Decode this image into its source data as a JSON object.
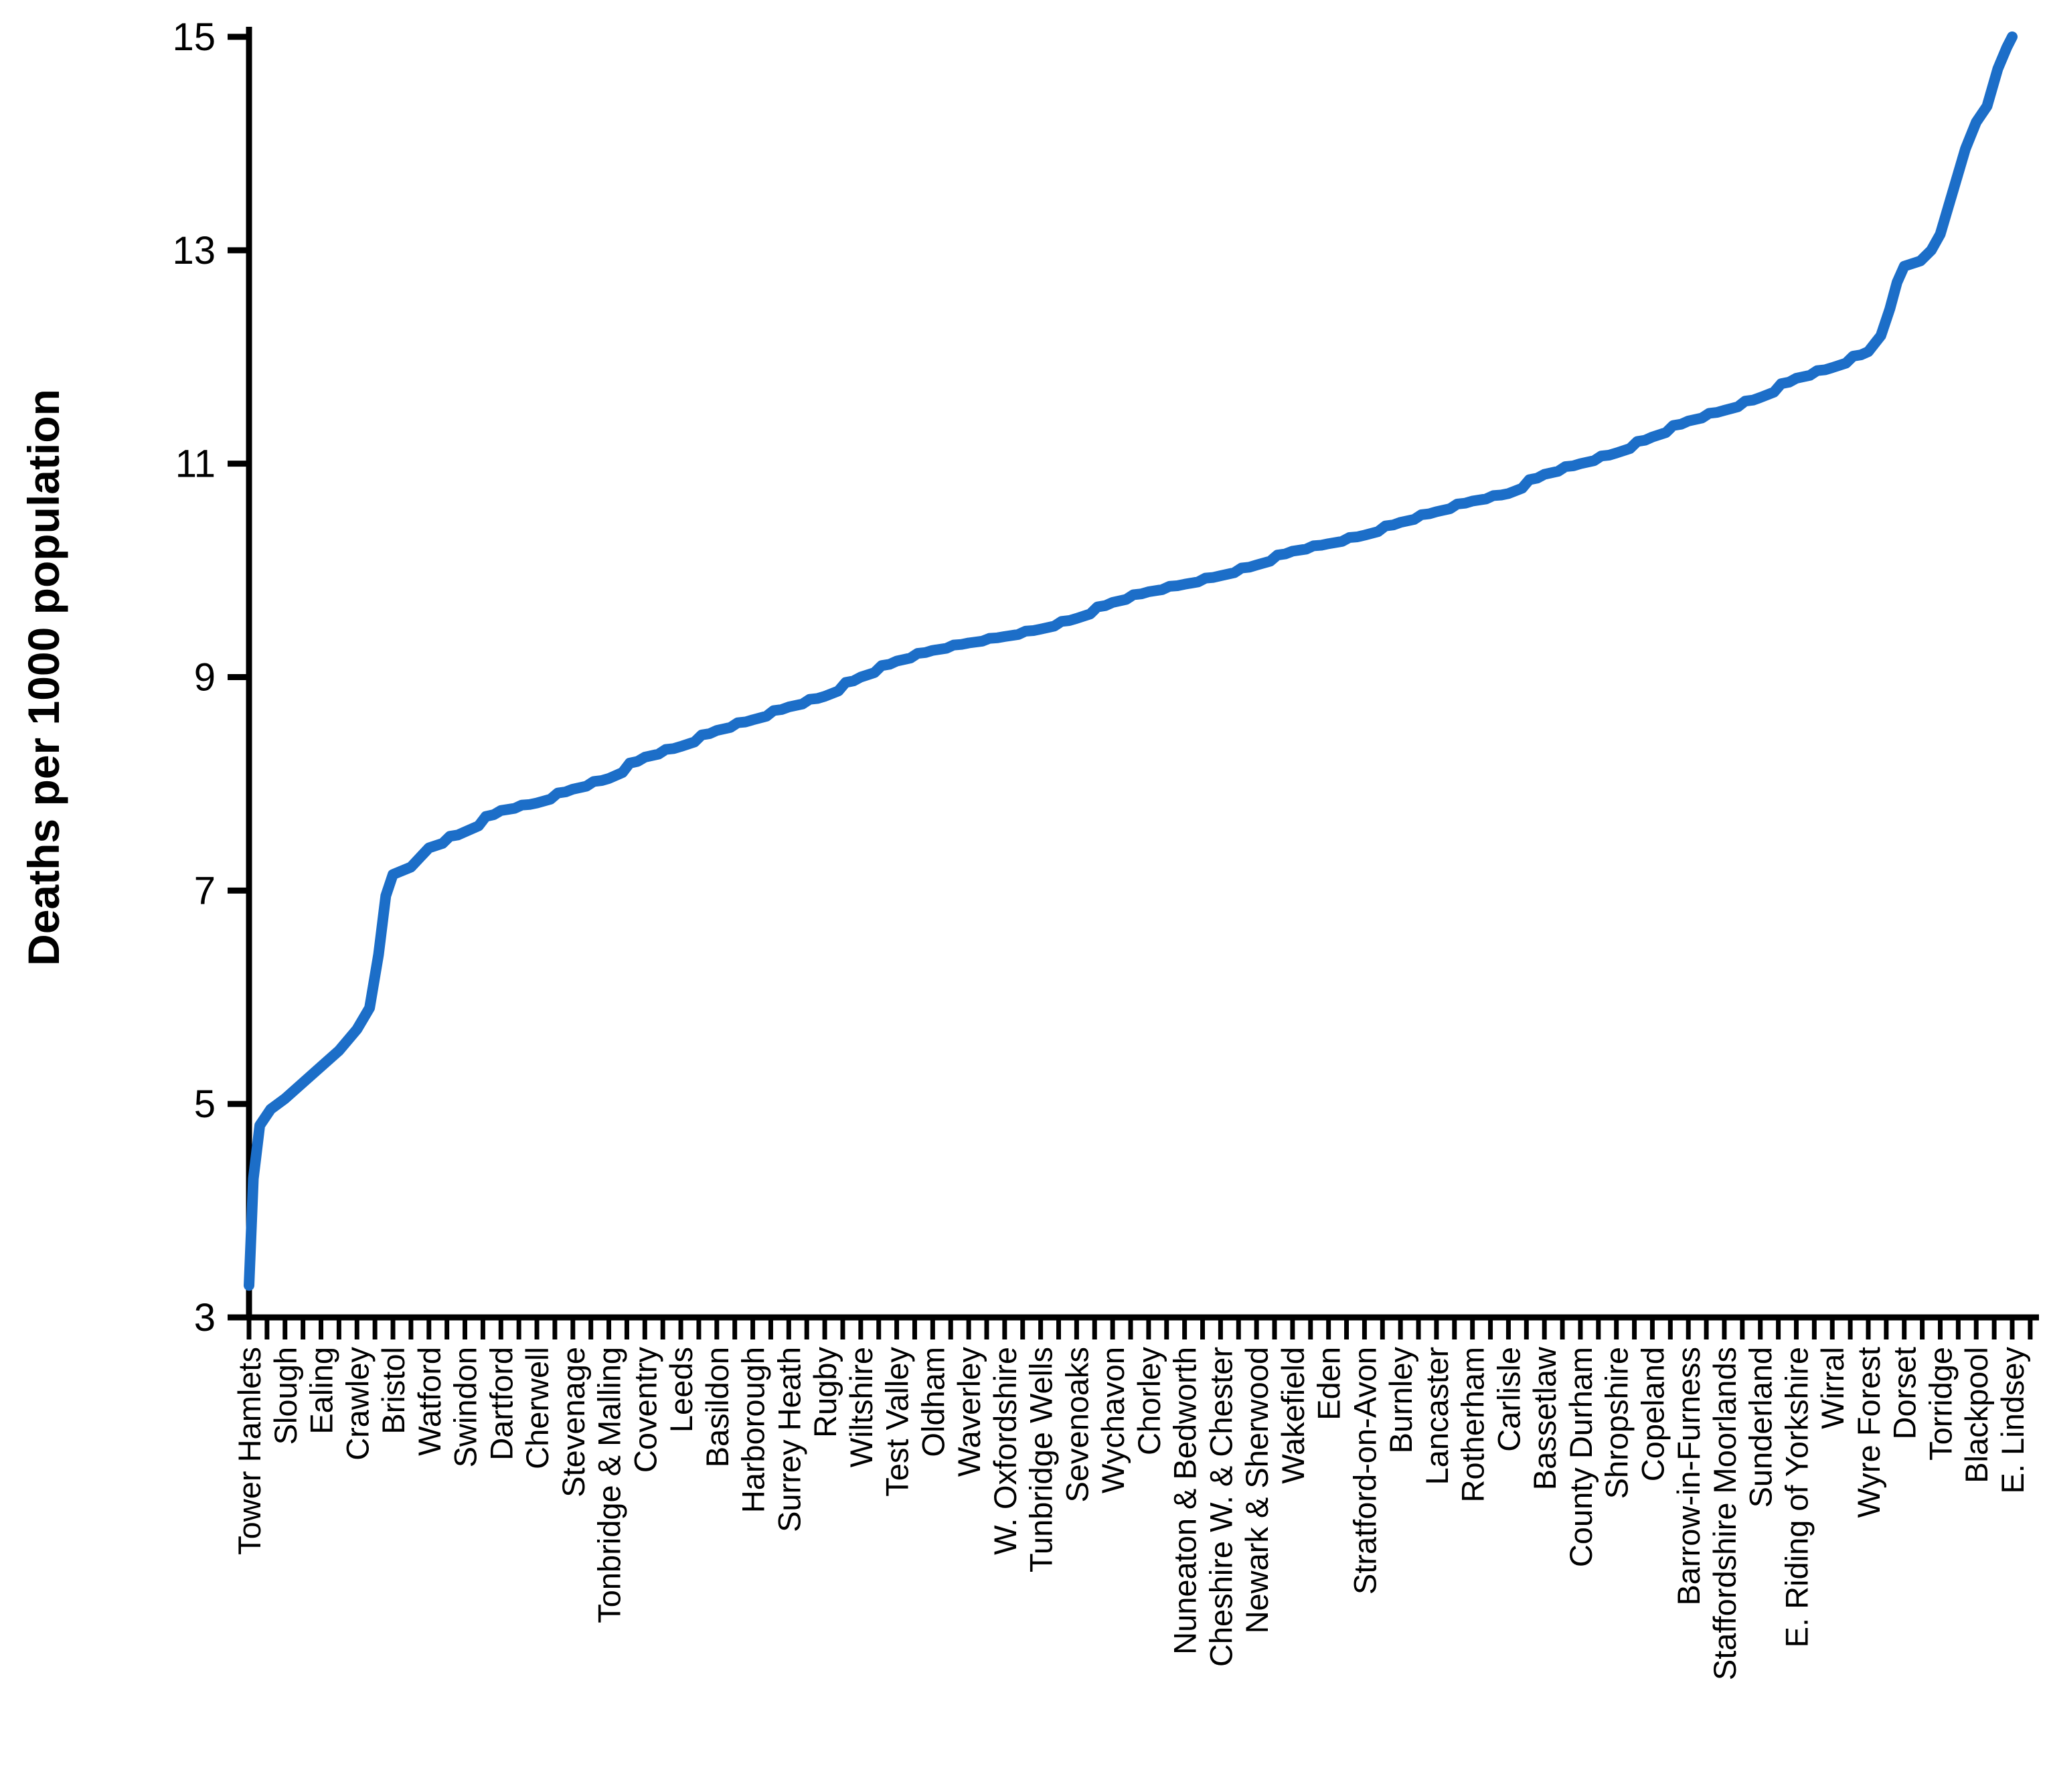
{
  "chart_data": {
    "type": "line",
    "title": "",
    "ylabel": "Deaths per 1000 population",
    "xlabel": "",
    "ylim": [
      3,
      15
    ],
    "yticks": [
      3,
      5,
      7,
      9,
      11,
      13,
      15
    ],
    "grid": false,
    "legend": false,
    "line_color": "#1c6ec8",
    "axis_color": "#000000",
    "background": "#ffffff",
    "x_tick_label_rotation_deg": 90,
    "sorted_ascending": true,
    "categories": [
      "Tower Hamlets",
      "Slough",
      "Ealing",
      "Crawley",
      "Bristol",
      "Watford",
      "Swindon",
      "Dartford",
      "Cherwell",
      "Stevenage",
      "Tonbridge & Malling",
      "Coventry",
      "Leeds",
      "Basildon",
      "Harborough",
      "Surrey Heath",
      "Rugby",
      "Wiltshire",
      "Test Valley",
      "Oldham",
      "Waverley",
      "W. Oxfordshire",
      "Tunbridge Wells",
      "Sevenoaks",
      "Wychavon",
      "Chorley",
      "Nuneaton & Bedworth",
      "Cheshire W. & Chester",
      "Newark & Sherwood",
      "Wakefield",
      "Eden",
      "Stratford-on-Avon",
      "Burnley",
      "Lancaster",
      "Rotherham",
      "Carlisle",
      "Bassetlaw",
      "County Durham",
      "Shropshire",
      "Copeland",
      "Barrow-in-Furness",
      "Staffordshire Moorlands",
      "Sunderland",
      "E. Riding of Yorkshire",
      "Wirral",
      "Wyre Forest",
      "Dorset",
      "Torridge",
      "Blackpool",
      "E. Lindsey"
    ],
    "values": [
      3.3,
      5.05,
      5.35,
      5.7,
      7.15,
      7.4,
      7.55,
      7.75,
      7.82,
      7.95,
      8.05,
      8.25,
      8.35,
      8.5,
      8.6,
      8.72,
      8.82,
      9.0,
      9.15,
      9.25,
      9.32,
      9.38,
      9.45,
      9.55,
      9.7,
      9.8,
      9.87,
      9.95,
      10.05,
      10.18,
      10.25,
      10.33,
      10.45,
      10.55,
      10.65,
      10.72,
      10.9,
      11.0,
      11.1,
      11.25,
      11.4,
      11.5,
      11.62,
      11.8,
      11.9,
      12.05,
      12.85,
      13.15,
      14.2,
      15.0
    ],
    "shape_anchors": [
      [
        0.12,
        4.3
      ],
      [
        0.3,
        4.8
      ],
      [
        0.6,
        4.95
      ],
      [
        1.5,
        5.2
      ],
      [
        2.5,
        5.5
      ],
      [
        3.35,
        5.9
      ],
      [
        3.6,
        6.4
      ],
      [
        3.8,
        6.95
      ],
      [
        4.5,
        7.22
      ],
      [
        45.35,
        12.2
      ],
      [
        45.6,
        12.45
      ],
      [
        45.8,
        12.7
      ],
      [
        46.45,
        12.9
      ],
      [
        46.75,
        13.0
      ],
      [
        47.35,
        13.55
      ],
      [
        47.7,
        13.95
      ],
      [
        48.3,
        14.35
      ],
      [
        48.6,
        14.7
      ],
      [
        48.85,
        14.9
      ]
    ]
  }
}
